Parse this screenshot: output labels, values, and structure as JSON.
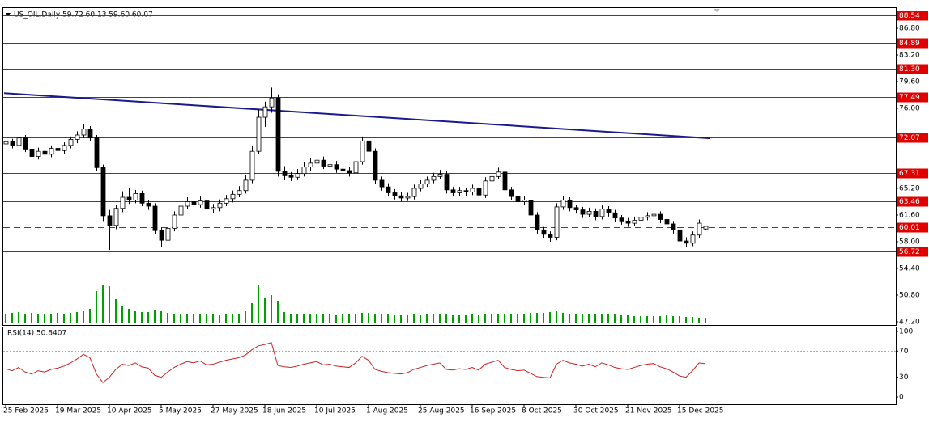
{
  "chart_data": {
    "type": "candlestick",
    "title": "US_OIL,Daily  59.72 60.13 59.60 60.07",
    "categories": [
      "25 Feb 2025",
      null,
      null,
      null,
      null,
      null,
      null,
      null,
      "19 Mar 2025",
      null,
      null,
      null,
      null,
      null,
      null,
      null,
      "10 Apr 2025",
      null,
      null,
      null,
      null,
      null,
      null,
      null,
      "5 May 2025",
      null,
      null,
      null,
      null,
      null,
      null,
      null,
      "27 May 2025",
      null,
      null,
      null,
      null,
      null,
      null,
      null,
      "18 Jun 2025",
      null,
      null,
      null,
      null,
      null,
      null,
      null,
      "10 Jul 2025",
      null,
      null,
      null,
      null,
      null,
      null,
      null,
      "1 Aug 2025",
      null,
      null,
      null,
      null,
      null,
      null,
      null,
      "25 Aug 2025",
      null,
      null,
      null,
      null,
      null,
      null,
      null,
      "16 Sep 2025",
      null,
      null,
      null,
      null,
      null,
      null,
      null,
      "8 Oct 2025",
      null,
      null,
      null,
      null,
      null,
      null,
      null,
      "30 Oct 2025",
      null,
      null,
      null,
      null,
      null,
      null,
      null,
      "21 Nov 2025",
      null,
      null,
      null,
      null,
      null,
      null,
      null,
      "15 Dec 2025",
      null,
      null,
      null,
      null
    ],
    "candles": [
      [
        71.2,
        72.0,
        70.7,
        71.5
      ],
      [
        71.5,
        71.9,
        70.6,
        71.0
      ],
      [
        71.0,
        72.4,
        70.6,
        72.0
      ],
      [
        72.0,
        72.4,
        70.1,
        70.5
      ],
      [
        70.5,
        71.0,
        69.0,
        69.5
      ],
      [
        69.5,
        70.7,
        69.1,
        70.2
      ],
      [
        70.2,
        70.6,
        69.3,
        69.8
      ],
      [
        69.8,
        71.0,
        69.4,
        70.6
      ],
      [
        70.6,
        71.0,
        69.9,
        70.3
      ],
      [
        70.3,
        71.4,
        69.9,
        71.0
      ],
      [
        71.0,
        72.2,
        70.6,
        71.8
      ],
      [
        71.8,
        72.9,
        71.3,
        72.4
      ],
      [
        72.4,
        73.8,
        72.0,
        73.2
      ],
      [
        73.2,
        73.6,
        71.6,
        72.0
      ],
      [
        72.0,
        72.4,
        67.5,
        68.0
      ],
      [
        68.0,
        68.4,
        60.8,
        61.5
      ],
      [
        61.5,
        62.3,
        56.9,
        60.2
      ],
      [
        60.2,
        63.0,
        59.7,
        62.5
      ],
      [
        62.5,
        64.8,
        62.0,
        64.0
      ],
      [
        64.0,
        65.2,
        63.1,
        63.6
      ],
      [
        63.6,
        65.0,
        63.2,
        64.5
      ],
      [
        64.5,
        64.9,
        62.8,
        63.2
      ],
      [
        63.2,
        63.6,
        62.3,
        62.8
      ],
      [
        62.8,
        63.2,
        59.0,
        59.5
      ],
      [
        59.5,
        59.9,
        57.3,
        58.2
      ],
      [
        58.2,
        60.3,
        57.8,
        59.8
      ],
      [
        59.8,
        62.1,
        59.4,
        61.6
      ],
      [
        61.6,
        63.3,
        61.2,
        62.8
      ],
      [
        62.8,
        64.0,
        62.4,
        63.4
      ],
      [
        63.4,
        63.9,
        62.5,
        63.0
      ],
      [
        63.0,
        64.1,
        62.6,
        63.5
      ],
      [
        63.5,
        63.9,
        61.8,
        62.4
      ],
      [
        62.4,
        63.1,
        61.9,
        62.6
      ],
      [
        62.6,
        63.7,
        62.1,
        63.2
      ],
      [
        63.2,
        64.3,
        62.8,
        63.8
      ],
      [
        63.8,
        64.9,
        63.3,
        64.4
      ],
      [
        64.4,
        65.5,
        64.0,
        64.9
      ],
      [
        64.9,
        67.0,
        64.5,
        66.3
      ],
      [
        66.3,
        71.0,
        65.9,
        70.2
      ],
      [
        70.2,
        75.8,
        69.8,
        74.8
      ],
      [
        74.8,
        76.9,
        73.5,
        76.2
      ],
      [
        76.2,
        78.8,
        75.4,
        77.4
      ],
      [
        77.4,
        77.9,
        66.8,
        67.5
      ],
      [
        67.5,
        68.2,
        66.3,
        66.9
      ],
      [
        66.9,
        67.4,
        66.2,
        66.7
      ],
      [
        66.7,
        67.8,
        66.3,
        67.2
      ],
      [
        67.2,
        68.7,
        66.8,
        68.1
      ],
      [
        68.1,
        69.3,
        67.6,
        68.6
      ],
      [
        68.6,
        69.7,
        68.1,
        69.0
      ],
      [
        69.0,
        69.5,
        67.8,
        68.2
      ],
      [
        68.2,
        69.0,
        67.8,
        68.4
      ],
      [
        68.4,
        68.9,
        67.3,
        67.8
      ],
      [
        67.8,
        68.3,
        67.1,
        67.6
      ],
      [
        67.6,
        68.1,
        66.8,
        67.3
      ],
      [
        67.3,
        69.4,
        66.9,
        68.8
      ],
      [
        68.8,
        72.2,
        68.4,
        71.6
      ],
      [
        71.6,
        72.0,
        69.7,
        70.2
      ],
      [
        70.2,
        70.6,
        65.8,
        66.3
      ],
      [
        66.3,
        66.8,
        64.9,
        65.4
      ],
      [
        65.4,
        65.9,
        64.1,
        64.6
      ],
      [
        64.6,
        65.1,
        63.7,
        64.2
      ],
      [
        64.2,
        64.7,
        63.4,
        63.9
      ],
      [
        63.9,
        64.6,
        63.5,
        64.1
      ],
      [
        64.1,
        65.7,
        63.7,
        65.2
      ],
      [
        65.2,
        66.3,
        64.8,
        65.8
      ],
      [
        65.8,
        66.8,
        65.4,
        66.3
      ],
      [
        66.3,
        67.3,
        65.9,
        66.8
      ],
      [
        66.8,
        67.7,
        66.4,
        67.1
      ],
      [
        67.1,
        67.5,
        64.5,
        65.0
      ],
      [
        65.0,
        65.4,
        64.1,
        64.6
      ],
      [
        64.6,
        65.4,
        64.2,
        64.9
      ],
      [
        64.9,
        65.3,
        64.2,
        64.7
      ],
      [
        64.7,
        65.7,
        64.3,
        65.2
      ],
      [
        65.2,
        65.6,
        63.8,
        64.3
      ],
      [
        64.3,
        66.7,
        63.9,
        66.2
      ],
      [
        66.2,
        67.3,
        65.8,
        66.8
      ],
      [
        66.8,
        68.0,
        66.4,
        67.4
      ],
      [
        67.4,
        67.8,
        64.5,
        65.0
      ],
      [
        65.0,
        65.4,
        63.6,
        64.1
      ],
      [
        64.1,
        64.5,
        62.9,
        63.4
      ],
      [
        63.4,
        64.1,
        63.0,
        63.6
      ],
      [
        63.6,
        64.0,
        61.1,
        61.6
      ],
      [
        61.6,
        62.0,
        59.1,
        59.6
      ],
      [
        59.6,
        60.0,
        58.5,
        59.0
      ],
      [
        59.0,
        59.4,
        58.0,
        58.6
      ],
      [
        58.6,
        63.2,
        58.2,
        62.7
      ],
      [
        62.7,
        64.1,
        62.3,
        63.6
      ],
      [
        63.6,
        64.0,
        62.1,
        62.6
      ],
      [
        62.6,
        63.0,
        61.8,
        62.3
      ],
      [
        62.3,
        62.7,
        61.2,
        61.7
      ],
      [
        61.7,
        62.6,
        61.3,
        62.1
      ],
      [
        62.1,
        62.5,
        60.9,
        61.4
      ],
      [
        61.4,
        62.9,
        61.0,
        62.4
      ],
      [
        62.4,
        62.8,
        61.4,
        61.9
      ],
      [
        61.9,
        62.3,
        60.7,
        61.2
      ],
      [
        61.2,
        61.6,
        60.3,
        60.8
      ],
      [
        60.8,
        61.2,
        60.0,
        60.5
      ],
      [
        60.5,
        61.4,
        60.1,
        60.9
      ],
      [
        60.9,
        61.8,
        60.5,
        61.3
      ],
      [
        61.3,
        62.0,
        60.9,
        61.5
      ],
      [
        61.5,
        62.2,
        61.1,
        61.7
      ],
      [
        61.7,
        62.1,
        60.5,
        61.0
      ],
      [
        61.0,
        61.4,
        59.9,
        60.4
      ],
      [
        60.4,
        60.8,
        59.1,
        59.6
      ],
      [
        59.6,
        60.0,
        57.5,
        58.1
      ],
      [
        58.1,
        58.6,
        57.3,
        57.8
      ],
      [
        57.8,
        59.4,
        57.4,
        58.9
      ],
      [
        58.9,
        61.0,
        58.5,
        60.5
      ],
      [
        59.72,
        60.13,
        59.6,
        60.07
      ]
    ],
    "volume": [
      12,
      13,
      14,
      12,
      13,
      12,
      11,
      12,
      13,
      12,
      13,
      14,
      15,
      18,
      40,
      48,
      46,
      30,
      22,
      18,
      15,
      14,
      14,
      16,
      15,
      13,
      12,
      12,
      11,
      11,
      11,
      12,
      11,
      10,
      11,
      12,
      12,
      15,
      25,
      48,
      32,
      35,
      28,
      14,
      12,
      11,
      11,
      12,
      11,
      11,
      11,
      10,
      11,
      11,
      12,
      13,
      13,
      12,
      11,
      11,
      10,
      10,
      10,
      11,
      10,
      11,
      12,
      11,
      11,
      10,
      10,
      10,
      11,
      10,
      11,
      11,
      12,
      11,
      11,
      12,
      12,
      13,
      13,
      13,
      14,
      15,
      13,
      12,
      12,
      11,
      11,
      11,
      12,
      11,
      11,
      10,
      10,
      9,
      9,
      9,
      9,
      9,
      10,
      9,
      9,
      8,
      8,
      7,
      7
    ],
    "ylim": [
      46.76,
      89.64
    ],
    "yticks": [
      {
        "value": 86.8,
        "label": "86.80"
      },
      {
        "value": 83.2,
        "label": "83.20"
      },
      {
        "value": 79.6,
        "label": "79.60"
      },
      {
        "value": 76.0,
        "label": "76.00"
      },
      {
        "value": 65.2,
        "label": "65.20"
      },
      {
        "value": 61.6,
        "label": "61.60"
      },
      {
        "value": 58.0,
        "label": "58.00"
      },
      {
        "value": 54.4,
        "label": "54.40"
      },
      {
        "value": 50.8,
        "label": "50.80"
      },
      {
        "value": 47.2,
        "label": "47.20"
      }
    ],
    "levels": [
      88.54,
      84.89,
      {
        "value": 81.3,
        "label": "81.30"
      },
      77.49,
      72.07,
      67.31,
      63.46,
      56.72
    ],
    "price_line": 60.01,
    "level_color": "#e00000",
    "trendline": {
      "x": [
        0,
        108
      ],
      "values": [
        78.05,
        71.95
      ],
      "color": "#1a1a8c"
    },
    "volume_color": "#00a000",
    "rsi": {
      "title": "RSI(14) 50.8407",
      "color": "#cc2222",
      "ylim": [
        -11.1,
        107.4
      ],
      "yticks": [
        100,
        70,
        30,
        0
      ],
      "levels": [
        70,
        30
      ],
      "values": [
        43,
        40,
        45,
        38,
        35,
        40,
        38,
        42,
        44,
        47,
        52,
        58,
        65,
        60,
        35,
        22,
        30,
        42,
        50,
        48,
        52,
        46,
        44,
        33,
        30,
        38,
        45,
        50,
        54,
        52,
        55,
        49,
        50,
        53,
        56,
        58,
        60,
        64,
        72,
        78,
        80,
        83,
        48,
        46,
        45,
        47,
        50,
        52,
        54,
        49,
        50,
        47,
        46,
        45,
        52,
        62,
        56,
        42,
        39,
        37,
        36,
        35,
        37,
        42,
        45,
        48,
        50,
        52,
        42,
        41,
        43,
        42,
        45,
        41,
        50,
        53,
        56,
        45,
        42,
        40,
        41,
        36,
        31,
        30,
        29,
        50,
        56,
        52,
        50,
        47,
        50,
        46,
        52,
        49,
        45,
        43,
        42,
        45,
        48,
        50,
        51,
        46,
        43,
        38,
        32,
        30,
        40,
        52,
        50.8407
      ]
    }
  }
}
